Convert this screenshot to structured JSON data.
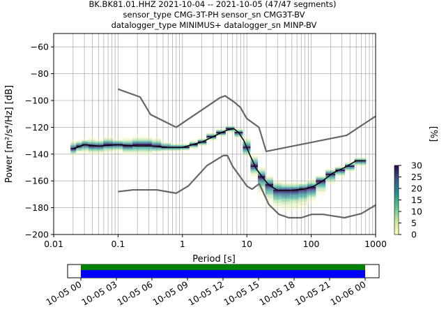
{
  "chart_data": {
    "type": "heatmap",
    "title_lines": [
      "BK.BK81.01.HHZ   2021-10-04 -- 2021-10-05  (47/47 segments)",
      "sensor_type CMG-3T-PH sensor_sn CMG3T-BV",
      "datalogger_type MINIMUS+ datalogger_sn MINP-BV"
    ],
    "xlabel": "Period [s]",
    "ylabel": "Power [m²/s⁴/Hz] [dB]",
    "xscale": "log",
    "xlim": [
      0.01,
      1000
    ],
    "ylim": [
      -200,
      -50
    ],
    "x_ticks": [
      {
        "v": 0.01,
        "label": "0.01"
      },
      {
        "v": 0.1,
        "label": "0.1"
      },
      {
        "v": 1,
        "label": "1"
      },
      {
        "v": 10,
        "label": "10"
      },
      {
        "v": 100,
        "label": "100"
      },
      {
        "v": 1000,
        "label": "1000"
      }
    ],
    "y_ticks": [
      {
        "v": -60,
        "label": "−60"
      },
      {
        "v": -80,
        "label": "−80"
      },
      {
        "v": -100,
        "label": "−100"
      },
      {
        "v": -120,
        "label": "−120"
      },
      {
        "v": -140,
        "label": "−140"
      },
      {
        "v": -160,
        "label": "−160"
      },
      {
        "v": -180,
        "label": "−180"
      },
      {
        "v": -200,
        "label": "−200"
      }
    ],
    "grid": true,
    "colorbar": {
      "label": "[%]",
      "range": [
        0,
        30
      ],
      "ticks": [
        {
          "v": 0,
          "label": "0"
        },
        {
          "v": 5,
          "label": "5"
        },
        {
          "v": 10,
          "label": "10"
        },
        {
          "v": 15,
          "label": "15"
        },
        {
          "v": 20,
          "label": "20"
        },
        {
          "v": 25,
          "label": "25"
        },
        {
          "v": 30,
          "label": "30"
        }
      ]
    },
    "nhnm": [
      [
        0.1,
        -91.5
      ],
      [
        0.22,
        -97.4
      ],
      [
        0.32,
        -110.5
      ],
      [
        0.8,
        -120
      ],
      [
        3.8,
        -98
      ],
      [
        4.6,
        -96.5
      ],
      [
        6.3,
        -101
      ],
      [
        7.9,
        -105
      ],
      [
        10,
        -113.5
      ],
      [
        15.4,
        -120
      ],
      [
        20,
        -138
      ],
      [
        354.8,
        -126
      ],
      [
        10000,
        -80
      ]
    ],
    "nlnm": [
      [
        0.1,
        -168
      ],
      [
        0.17,
        -166.7
      ],
      [
        0.4,
        -166.7
      ],
      [
        0.8,
        -169.2
      ],
      [
        1.24,
        -163.7
      ],
      [
        2.4,
        -148.6
      ],
      [
        4.3,
        -141.1
      ],
      [
        5,
        -141.1
      ],
      [
        6,
        -149
      ],
      [
        10,
        -163.8
      ],
      [
        12,
        -166.2
      ],
      [
        15.6,
        -162.1
      ],
      [
        21.9,
        -177.5
      ],
      [
        31.6,
        -185
      ],
      [
        45,
        -187.5
      ],
      [
        70,
        -187.5
      ],
      [
        101,
        -185
      ],
      [
        154,
        -185
      ],
      [
        328,
        -187.5
      ],
      [
        600,
        -184.4
      ],
      [
        1000,
        -178
      ]
    ],
    "mean_curve": [
      [
        0.02,
        -136
      ],
      [
        0.03,
        -133
      ],
      [
        0.05,
        -134
      ],
      [
        0.1,
        -133
      ],
      [
        0.2,
        -134
      ],
      [
        0.35,
        -134
      ],
      [
        0.6,
        -135
      ],
      [
        1,
        -135
      ],
      [
        2,
        -131
      ],
      [
        3,
        -127
      ],
      [
        4,
        -124
      ],
      [
        5,
        -122
      ],
      [
        6.3,
        -121
      ],
      [
        7.5,
        -124
      ],
      [
        9,
        -130
      ],
      [
        11,
        -140
      ],
      [
        14,
        -151
      ],
      [
        18,
        -158
      ],
      [
        22,
        -163
      ],
      [
        30,
        -167
      ],
      [
        50,
        -167
      ],
      [
        80,
        -166
      ],
      [
        110,
        -164
      ],
      [
        150,
        -160
      ],
      [
        220,
        -154
      ],
      [
        330,
        -150
      ],
      [
        500,
        -145
      ],
      [
        650,
        -145
      ]
    ],
    "density_rows": [
      {
        "p": 0.02,
        "core": -136,
        "hi": -130,
        "lo": -141
      },
      {
        "p": 0.025,
        "core": -134,
        "hi": -130,
        "lo": -139
      },
      {
        "p": 0.03,
        "core": -133,
        "hi": -129,
        "lo": -139
      },
      {
        "p": 0.04,
        "core": -134,
        "hi": -128,
        "lo": -140
      },
      {
        "p": 0.05,
        "core": -134,
        "hi": -129,
        "lo": -140
      },
      {
        "p": 0.07,
        "core": -133,
        "hi": -127,
        "lo": -139
      },
      {
        "p": 0.1,
        "core": -133,
        "hi": -129,
        "lo": -138
      },
      {
        "p": 0.14,
        "core": -134,
        "hi": -128,
        "lo": -140
      },
      {
        "p": 0.2,
        "core": -133,
        "hi": -127,
        "lo": -140
      },
      {
        "p": 0.28,
        "core": -133,
        "hi": -127,
        "lo": -140
      },
      {
        "p": 0.4,
        "core": -134,
        "hi": -128,
        "lo": -139
      },
      {
        "p": 0.55,
        "core": -135,
        "hi": -131,
        "lo": -138
      },
      {
        "p": 0.8,
        "core": -135,
        "hi": -132,
        "lo": -138
      },
      {
        "p": 1.1,
        "core": -135,
        "hi": -132,
        "lo": -137
      },
      {
        "p": 1.5,
        "core": -133,
        "hi": -130,
        "lo": -136
      },
      {
        "p": 2,
        "core": -131,
        "hi": -128,
        "lo": -134
      },
      {
        "p": 2.8,
        "core": -127,
        "hi": -124,
        "lo": -130
      },
      {
        "p": 4,
        "core": -124,
        "hi": -121,
        "lo": -127
      },
      {
        "p": 5.5,
        "core": -121,
        "hi": -119,
        "lo": -124
      },
      {
        "p": 7.5,
        "core": -124,
        "hi": -121,
        "lo": -128
      },
      {
        "p": 10,
        "core": -135,
        "hi": -128,
        "lo": -142
      },
      {
        "p": 13,
        "core": -149,
        "hi": -140,
        "lo": -157
      },
      {
        "p": 17,
        "core": -157,
        "hi": -150,
        "lo": -170
      },
      {
        "p": 22,
        "core": -163,
        "hi": -156,
        "lo": -176
      },
      {
        "p": 30,
        "core": -167,
        "hi": -160,
        "lo": -180
      },
      {
        "p": 40,
        "core": -167,
        "hi": -161,
        "lo": -182
      },
      {
        "p": 55,
        "core": -167,
        "hi": -161,
        "lo": -181
      },
      {
        "p": 75,
        "core": -166,
        "hi": -161,
        "lo": -180
      },
      {
        "p": 100,
        "core": -165,
        "hi": -159,
        "lo": -176
      },
      {
        "p": 140,
        "core": -160,
        "hi": -156,
        "lo": -170
      },
      {
        "p": 200,
        "core": -155,
        "hi": -151,
        "lo": -162
      },
      {
        "p": 280,
        "core": -152,
        "hi": -149,
        "lo": -157
      },
      {
        "p": 400,
        "core": -149,
        "hi": -146,
        "lo": -153
      },
      {
        "p": 550,
        "core": -145,
        "hi": -143,
        "lo": -149
      },
      {
        "p": 650,
        "core": -145,
        "hi": -143,
        "lo": -149
      }
    ],
    "timeline": {
      "ticks": [
        {
          "label": "10-05 00",
          "frac": 0.0
        },
        {
          "label": "10-05 03",
          "frac": 0.125
        },
        {
          "label": "10-05 06",
          "frac": 0.25
        },
        {
          "label": "10-05 09",
          "frac": 0.375
        },
        {
          "label": "10-05 12",
          "frac": 0.5
        },
        {
          "label": "10-05 15",
          "frac": 0.625
        },
        {
          "label": "10-05 18",
          "frac": 0.75
        },
        {
          "label": "10-05 21",
          "frac": 0.875
        },
        {
          "label": "10-06 00",
          "frac": 1.0
        }
      ],
      "data_coverage_color": "#008000",
      "psd_coverage_color": "#0000ff"
    }
  }
}
